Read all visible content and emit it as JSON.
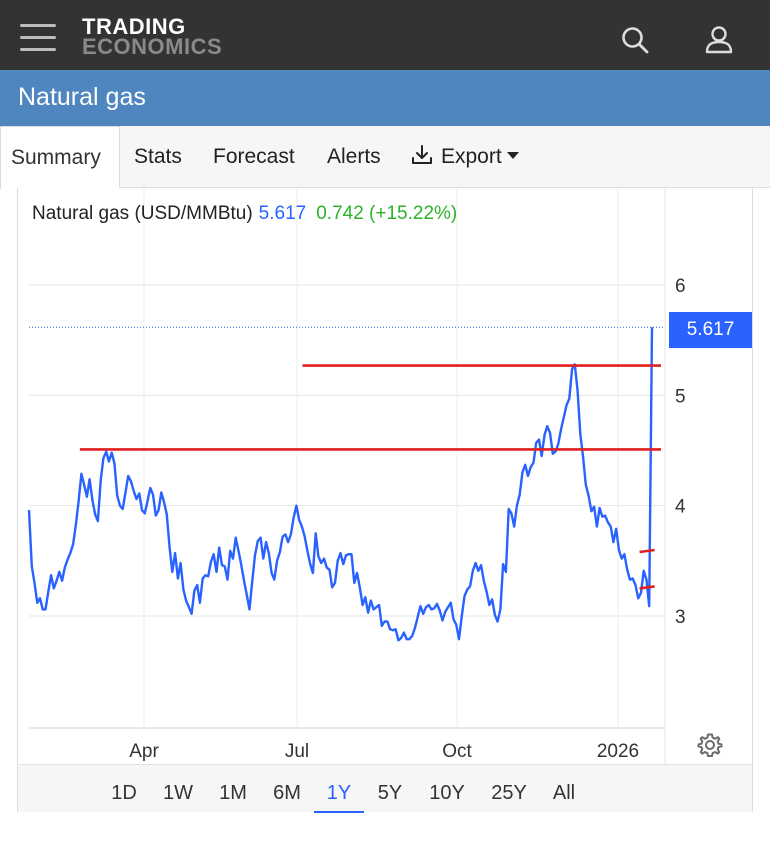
{
  "header": {
    "logo_line1": "TRADING",
    "logo_line2": "ECONOMICS",
    "menu_icon": "hamburger-menu-icon",
    "search_icon": "search-icon",
    "user_icon": "user-icon"
  },
  "page": {
    "title": "Natural gas"
  },
  "tabs": [
    {
      "label": "Summary",
      "active": true
    },
    {
      "label": "Stats"
    },
    {
      "label": "Forecast"
    },
    {
      "label": "Alerts"
    },
    {
      "label": "Export"
    }
  ],
  "legend": {
    "name": "Natural gas (USD/MMBtu)",
    "price": "5.617",
    "change": "0.742 (+15.22%)",
    "price_color": "#2962ff",
    "change_color": "#2bb32b"
  },
  "chart_data": {
    "type": "line",
    "series": [
      {
        "values": [
          3.96,
          3.45,
          3.3,
          3.12,
          3.16,
          3.06,
          3.06,
          3.22,
          3.37,
          3.25,
          3.32,
          3.4,
          3.32,
          3.44,
          3.51,
          3.57,
          3.65,
          3.83,
          4.04,
          4.29,
          4.19,
          4.08,
          4.24,
          4.05,
          3.92,
          3.86,
          4.23,
          4.43,
          4.49,
          4.4,
          4.48,
          4.38,
          4.09,
          4.0,
          3.97,
          4.12,
          4.27,
          4.22,
          4.13,
          4.06,
          4.11,
          3.96,
          3.93,
          4.04,
          4.16,
          4.1,
          3.91,
          3.96,
          4.12,
          4.03,
          3.92,
          3.62,
          3.4,
          3.57,
          3.34,
          3.48,
          3.24,
          3.14,
          3.08,
          3.02,
          3.23,
          3.28,
          3.12,
          3.34,
          3.37,
          3.36,
          3.49,
          3.56,
          3.4,
          3.62,
          3.46,
          3.45,
          3.33,
          3.59,
          3.52,
          3.71,
          3.59,
          3.46,
          3.32,
          3.19,
          3.06,
          3.32,
          3.55,
          3.68,
          3.71,
          3.52,
          3.67,
          3.57,
          3.39,
          3.33,
          3.5,
          3.58,
          3.72,
          3.74,
          3.67,
          3.74,
          3.89,
          4.0,
          3.87,
          3.81,
          3.72,
          3.59,
          3.47,
          3.39,
          3.75,
          3.54,
          3.48,
          3.52,
          3.44,
          3.42,
          3.26,
          3.3,
          3.5,
          3.57,
          3.47,
          3.55,
          3.56,
          3.56,
          3.3,
          3.39,
          3.26,
          3.1,
          3.17,
          3.03,
          3.14,
          3.06,
          3.08,
          3.1,
          2.91,
          2.95,
          2.95,
          2.88,
          2.87,
          2.88,
          2.78,
          2.8,
          2.85,
          2.79,
          2.79,
          2.82,
          2.89,
          2.99,
          3.09,
          3.02,
          3.08,
          3.1,
          3.06,
          3.07,
          3.11,
          3.05,
          2.96,
          3.04,
          3.08,
          3.12,
          2.97,
          2.92,
          2.79,
          3.0,
          3.18,
          3.24,
          3.27,
          3.41,
          3.48,
          3.41,
          3.46,
          3.32,
          3.22,
          3.1,
          3.15,
          3.01,
          2.95,
          3.06,
          3.47,
          3.4,
          3.97,
          3.93,
          3.81,
          4.0,
          4.1,
          4.3,
          4.37,
          4.27,
          4.35,
          4.39,
          4.57,
          4.6,
          4.45,
          4.64,
          4.72,
          4.66,
          4.47,
          4.49,
          4.56,
          4.69,
          4.8,
          4.91,
          4.97,
          5.24,
          5.28,
          5.04,
          4.65,
          4.44,
          4.19,
          4.09,
          3.95,
          3.99,
          3.81,
          3.98,
          3.9,
          3.91,
          3.85,
          3.81,
          3.67,
          3.79,
          3.6,
          3.52,
          3.56,
          3.42,
          3.33,
          3.34,
          3.28,
          3.16,
          3.21,
          3.41,
          3.33,
          3.09,
          5.617
        ]
      }
    ],
    "xlabels": [
      "Apr",
      "Jul",
      "Oct",
      "2026"
    ],
    "yticks": [
      3,
      4,
      5,
      6
    ],
    "ylim": [
      2.0,
      6.5
    ],
    "last_value": "5.617",
    "annotations": [
      {
        "type": "horizontal-line",
        "color": "#e02020",
        "y": 4.51,
        "from": 0.08,
        "to": 1.0
      },
      {
        "type": "horizontal-line",
        "color": "#e02020",
        "y": 5.27,
        "from": 0.43,
        "to": 1.0
      },
      {
        "type": "horizontal-line",
        "color": "#e02020",
        "y": 3.58,
        "from": 0.96,
        "to": 0.99
      },
      {
        "type": "horizontal-line",
        "color": "#e02020",
        "y": 3.25,
        "from": 0.96,
        "to": 0.99
      }
    ],
    "grid": true,
    "line_color": "#2962ff"
  },
  "chart_tools": {
    "settings_icon": "gear-icon"
  },
  "range": {
    "buttons": [
      "1D",
      "1W",
      "1M",
      "6M",
      "1Y",
      "5Y",
      "10Y",
      "25Y",
      "All"
    ],
    "active": "1Y"
  }
}
